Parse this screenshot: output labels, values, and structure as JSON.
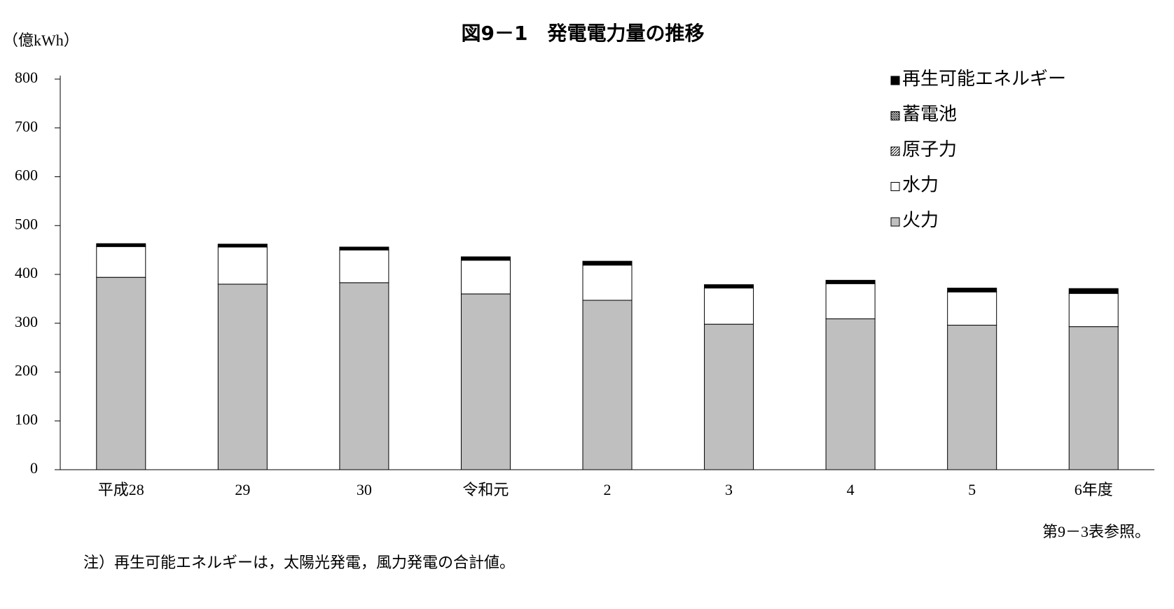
{
  "chart_data": {
    "type": "stacked_bar",
    "title": "図9－1　発電電力量の推移",
    "y_label": "（億kWh）",
    "source": "第9－3表参照。",
    "note": "注）再生可能エネルギーは，太陽光発電，風力発電の合計値。",
    "categories": [
      "平成28",
      "29",
      "30",
      "令和元",
      "2",
      "3",
      "4",
      "5",
      "6年度"
    ],
    "series": [
      {
        "name": "火力",
        "color": "#bfbfbf",
        "values": [
          394,
          380,
          383,
          360,
          347,
          298,
          309,
          296,
          293
        ]
      },
      {
        "name": "水力",
        "color": "#ffffff",
        "values": [
          63,
          76,
          67,
          69,
          72,
          74,
          72,
          68,
          68
        ]
      },
      {
        "name": "原子力",
        "color": "#ffffff",
        "hatch": "forward",
        "values": [
          0,
          0,
          0,
          0,
          0,
          0,
          0,
          0,
          0
        ]
      },
      {
        "name": "蓄電池",
        "color": "#ffffff",
        "hatch": "backward",
        "values": [
          0,
          0,
          0,
          0,
          0,
          0,
          0,
          0,
          0
        ]
      },
      {
        "name": "再生可能エネルギー",
        "color": "#000000",
        "values": [
          6,
          6,
          6,
          7,
          8,
          7,
          7,
          8,
          10
        ]
      }
    ],
    "ylim": [
      0,
      800
    ],
    "yticks": [
      0,
      100,
      200,
      300,
      400,
      500,
      600,
      700,
      800
    ],
    "grid": false,
    "legend": "upper right"
  }
}
